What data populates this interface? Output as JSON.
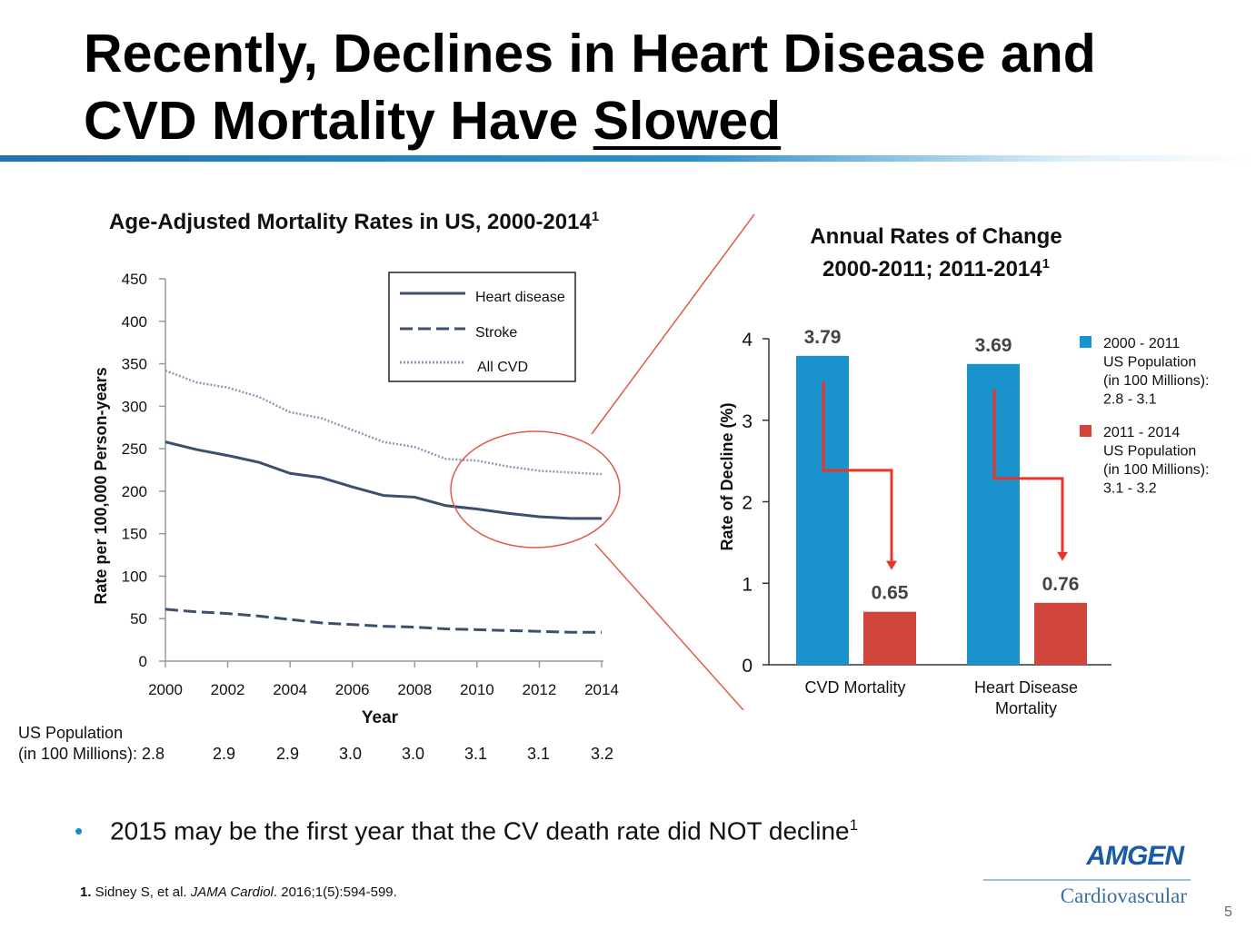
{
  "slide": {
    "title_line1": "Recently, Declines in Heart Disease and",
    "title_line2_prefix": "CVD Mortality Have ",
    "title_line2_underlined": "Slowed",
    "accent_color": "#1e73b8",
    "bullet": "2015 may be the first year that the CV death rate did NOT decline",
    "bullet_sup": "1",
    "footnote": {
      "number": "1.",
      "text_before": " Sidney S, et al. ",
      "journal": "JAMA Cardiol",
      "text_after": ". 2016;1(5):594-599."
    },
    "logo_brand": "AMGEN",
    "logo_sub": "Cardiovascular",
    "page_number": "5"
  },
  "population": {
    "label_line1": "US Population",
    "label_line2": "(in 100 Millions): 2.8",
    "values": [
      "2.9",
      "2.9",
      "3.0",
      "3.0",
      "3.1",
      "3.1",
      "3.2"
    ]
  },
  "chart_data": [
    {
      "type": "line",
      "title": "Age-Adjusted Mortality Rates in US, 2000-2014",
      "title_sup": "1",
      "xlabel": "Year",
      "ylabel": "Rate per 100,000 Person-years",
      "xlim": [
        2000,
        2014
      ],
      "ylim": [
        0,
        450
      ],
      "x_ticks": [
        2000,
        2002,
        2004,
        2006,
        2008,
        2010,
        2012,
        2014
      ],
      "y_ticks": [
        0,
        50,
        100,
        150,
        200,
        250,
        300,
        350,
        400,
        450
      ],
      "grid": false,
      "legend_position": "top-right",
      "x": [
        2000,
        2001,
        2002,
        2003,
        2004,
        2005,
        2006,
        2007,
        2008,
        2009,
        2010,
        2011,
        2012,
        2013,
        2014
      ],
      "series": [
        {
          "name": "Heart disease",
          "style": "solid",
          "color": "#3d4f6e",
          "values": [
            258,
            249,
            242,
            234,
            221,
            216,
            205,
            195,
            193,
            183,
            179,
            174,
            170,
            168,
            168
          ]
        },
        {
          "name": "Stroke",
          "style": "dashed",
          "color": "#3d4f6e",
          "values": [
            61,
            58,
            56,
            53,
            49,
            45,
            43,
            41,
            40,
            38,
            37,
            36,
            35,
            34,
            34
          ]
        },
        {
          "name": "All CVD",
          "style": "dotted",
          "color": "#8b9ab4",
          "values": [
            342,
            328,
            322,
            311,
            293,
            286,
            272,
            258,
            252,
            238,
            236,
            229,
            224,
            222,
            220
          ]
        }
      ]
    },
    {
      "type": "bar",
      "title_line1": "Annual Rates of Change",
      "title_line2": "2000-2011; 2011-2014",
      "title_sup": "1",
      "xlabel": "",
      "ylabel": "Rate of Decline (%)",
      "ylim": [
        0,
        4
      ],
      "y_ticks": [
        0,
        1,
        2,
        3,
        4
      ],
      "grid": false,
      "legend_position": "right",
      "categories": [
        "CVD Mortality",
        "Heart Disease Mortality"
      ],
      "category_lines": [
        [
          "CVD Mortality"
        ],
        [
          "Heart Disease",
          "Mortality"
        ]
      ],
      "series": [
        {
          "name": "2000 - 2011",
          "legend_lines": [
            "2000 - 2011",
            "US Population",
            "(in 100 Millions):",
            "2.8 - 3.1"
          ],
          "color": "#1a93cc",
          "values": [
            3.79,
            3.69
          ],
          "labels": [
            "3.79",
            "3.69"
          ]
        },
        {
          "name": "2011 - 2014",
          "legend_lines": [
            "2011 - 2014",
            "US Population",
            "(in 100 Millions):",
            "3.1 - 3.2"
          ],
          "color": "#d0463c",
          "values": [
            0.65,
            0.76
          ],
          "labels": [
            "0.65",
            "0.76"
          ]
        }
      ],
      "arrow_color": "#e8352a"
    }
  ]
}
